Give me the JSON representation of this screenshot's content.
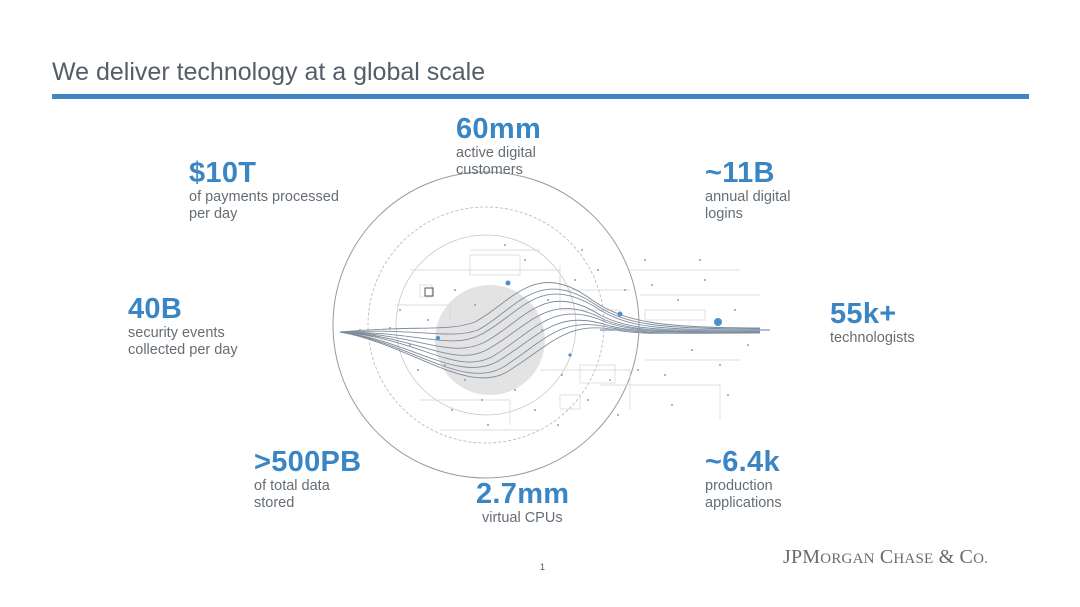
{
  "slide": {
    "title": "We deliver technology at a global scale",
    "page_number": "1",
    "logo_text": "JPMorgan Chase & Co."
  },
  "stats": {
    "customers": {
      "value": "60mm",
      "label": "active digital\ncustomers"
    },
    "payments": {
      "value": "$10T",
      "label": "of payments processed\nper day"
    },
    "logins": {
      "value": "~11B",
      "label": "annual digital\nlogins"
    },
    "security": {
      "value": "40B",
      "label": "security events\ncollected per day"
    },
    "technologists": {
      "value": "55k+",
      "label": "technologists"
    },
    "data": {
      "value": ">500PB",
      "label": "of total data\n stored"
    },
    "cpus": {
      "value": "2.7mm",
      "label": "virtual CPUs"
    },
    "applications": {
      "value": "~6.4k",
      "label": "production\napplications"
    }
  },
  "colors": {
    "accent": "#3a86c4",
    "rule": "#3f86c2",
    "title": "#555d66",
    "label": "#656d74"
  }
}
